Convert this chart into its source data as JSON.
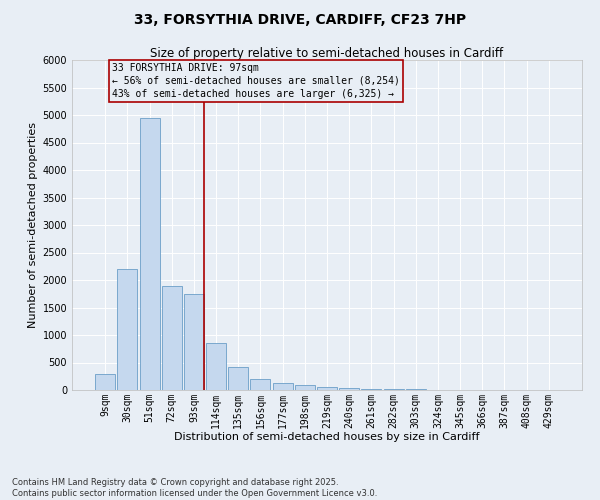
{
  "title_line1": "33, FORSYTHIA DRIVE, CARDIFF, CF23 7HP",
  "title_line2": "Size of property relative to semi-detached houses in Cardiff",
  "xlabel": "Distribution of semi-detached houses by size in Cardiff",
  "ylabel": "Number of semi-detached properties",
  "categories": [
    "9sqm",
    "30sqm",
    "51sqm",
    "72sqm",
    "93sqm",
    "114sqm",
    "135sqm",
    "156sqm",
    "177sqm",
    "198sqm",
    "219sqm",
    "240sqm",
    "261sqm",
    "282sqm",
    "303sqm",
    "324sqm",
    "345sqm",
    "366sqm",
    "387sqm",
    "408sqm",
    "429sqm"
  ],
  "values": [
    300,
    2200,
    4950,
    1900,
    1750,
    850,
    420,
    200,
    120,
    90,
    55,
    35,
    20,
    15,
    10,
    7,
    5,
    3,
    2,
    1,
    0
  ],
  "bar_color": "#c5d8ee",
  "bar_edge_color": "#6b9ec8",
  "background_color": "#e8eef5",
  "grid_color": "#ffffff",
  "vline_x_index": 4,
  "vline_color": "#aa0000",
  "annotation_title": "33 FORSYTHIA DRIVE: 97sqm",
  "annotation_line2": "← 56% of semi-detached houses are smaller (8,254)",
  "annotation_line3": "43% of semi-detached houses are larger (6,325) →",
  "annotation_box_edge_color": "#aa0000",
  "ylim": [
    0,
    6000
  ],
  "yticks": [
    0,
    500,
    1000,
    1500,
    2000,
    2500,
    3000,
    3500,
    4000,
    4500,
    5000,
    5500,
    6000
  ],
  "footer_line1": "Contains HM Land Registry data © Crown copyright and database right 2025.",
  "footer_line2": "Contains public sector information licensed under the Open Government Licence v3.0.",
  "title_fontsize": 10,
  "subtitle_fontsize": 8.5,
  "axis_label_fontsize": 8,
  "tick_fontsize": 7,
  "ytick_fontsize": 7,
  "annotation_fontsize": 7,
  "footer_fontsize": 6
}
